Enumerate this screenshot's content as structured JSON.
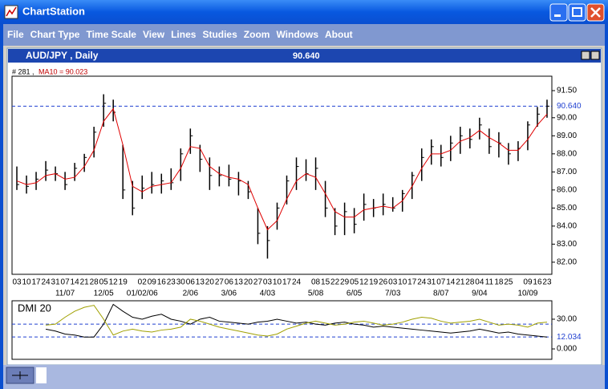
{
  "window": {
    "title": "ChartStation"
  },
  "menu": [
    "File",
    "Chart Type",
    "Time Scale",
    "View",
    "Lines",
    "Studies",
    "Zoom",
    "Windows",
    "About"
  ],
  "panel": {
    "symbol": "AUD/JPY , Daily",
    "price": "90.640"
  },
  "chart_data": [
    {
      "type": "ohlc",
      "info": "# 281 ,",
      "ma_label": "MA10 = 90.023",
      "categories": [
        "03",
        "10",
        "17",
        "24",
        "31",
        "07",
        "14",
        "21",
        "28",
        "05",
        "12",
        "19",
        null,
        "02",
        "09",
        "16",
        "23",
        "30",
        "06",
        "13",
        "20",
        "27",
        "06",
        "13",
        "20",
        "27",
        "03",
        "10",
        "17",
        "24",
        null,
        "08",
        "15",
        "22",
        "29",
        "05",
        "12",
        "19",
        "26",
        "03",
        "10",
        "17",
        "24",
        "31",
        "07",
        "14",
        "21",
        "28",
        "04",
        "11",
        "18",
        "25",
        null,
        "09",
        "16",
        "23"
      ],
      "month_labels": [
        null,
        null,
        null,
        null,
        null,
        "11/07",
        null,
        null,
        null,
        "12/05",
        null,
        null,
        null,
        "01/02/06",
        null,
        null,
        null,
        null,
        "2/06",
        null,
        null,
        null,
        "3/06",
        null,
        null,
        null,
        "4/03",
        null,
        null,
        null,
        null,
        "5/08",
        null,
        null,
        null,
        "6/05",
        null,
        null,
        null,
        "7/03",
        null,
        null,
        null,
        null,
        "8/07",
        null,
        null,
        null,
        "9/04",
        null,
        null,
        null,
        null,
        "10/09",
        null,
        null
      ],
      "high": [
        87.3,
        86.8,
        87.0,
        87.6,
        87.3,
        87.0,
        87.5,
        88.0,
        89.5,
        91.3,
        91.0,
        88.5,
        86.5,
        86.8,
        87.0,
        86.9,
        87.2,
        88.3,
        89.4,
        88.5,
        87.8,
        87.3,
        87.4,
        87.0,
        86.5,
        85.0,
        84.0,
        85.3,
        86.8,
        87.8,
        87.7,
        87.8,
        86.5,
        85.0,
        85.3,
        85.0,
        85.8,
        85.5,
        85.8,
        85.6,
        86.0,
        87.0,
        88.3,
        88.8,
        88.5,
        89.0,
        89.5,
        89.4,
        90.0,
        89.4,
        89.2,
        88.6,
        88.7,
        89.8,
        90.6,
        91.0
      ],
      "low": [
        86.0,
        85.8,
        86.0,
        86.5,
        86.5,
        86.0,
        86.5,
        87.0,
        87.8,
        89.5,
        89.8,
        85.5,
        84.6,
        85.5,
        85.8,
        85.8,
        86.0,
        86.5,
        88.0,
        87.0,
        86.0,
        86.2,
        86.2,
        85.7,
        85.5,
        83.0,
        82.2,
        83.8,
        85.2,
        86.0,
        86.5,
        86.0,
        84.5,
        83.5,
        83.5,
        83.6,
        84.3,
        84.5,
        84.6,
        84.8,
        84.8,
        85.5,
        86.5,
        87.4,
        87.3,
        87.6,
        88.0,
        88.3,
        88.8,
        88.0,
        87.8,
        87.4,
        87.6,
        88.2,
        89.5,
        90.0
      ],
      "close": [
        86.3,
        86.2,
        86.6,
        87.1,
        86.9,
        86.3,
        87.2,
        87.8,
        89.2,
        90.8,
        90.3,
        86.0,
        85.0,
        86.1,
        86.3,
        86.5,
        86.4,
        88.0,
        89.0,
        87.7,
        86.8,
        86.8,
        86.6,
        86.5,
        85.9,
        83.6,
        83.2,
        85.0,
        86.5,
        87.3,
        86.9,
        87.2,
        85.0,
        84.0,
        84.8,
        84.1,
        85.2,
        85.0,
        85.2,
        85.0,
        85.8,
        86.8,
        87.8,
        88.4,
        87.8,
        88.6,
        89.0,
        88.8,
        89.6,
        88.4,
        88.6,
        88.0,
        88.3,
        89.6,
        90.2,
        90.64
      ],
      "bar_color": "#000000",
      "ma": {
        "color": "#e00000",
        "values": [
          86.5,
          86.3,
          86.4,
          86.8,
          86.9,
          86.6,
          86.7,
          87.3,
          88.2,
          89.8,
          90.5,
          88.5,
          86.2,
          85.9,
          86.2,
          86.3,
          86.4,
          87.2,
          88.4,
          88.3,
          87.3,
          86.9,
          86.7,
          86.6,
          86.3,
          85.0,
          83.8,
          84.3,
          85.5,
          86.5,
          86.9,
          86.7,
          85.8,
          84.8,
          84.5,
          84.5,
          84.9,
          85.0,
          85.1,
          85.0,
          85.4,
          86.2,
          87.2,
          88.0,
          88.0,
          88.2,
          88.7,
          88.9,
          89.3,
          88.9,
          88.6,
          88.2,
          88.2,
          88.8,
          89.6,
          90.2
        ]
      },
      "ylim": [
        81.33,
        92.3
      ],
      "yticks": [
        {
          "value": 82,
          "label": "82.00"
        },
        {
          "value": 83,
          "label": "83.00"
        },
        {
          "value": 84,
          "label": "84.00"
        },
        {
          "value": 85,
          "label": "85.00"
        },
        {
          "value": 86,
          "label": "86.00"
        },
        {
          "value": 87,
          "label": "87.00"
        },
        {
          "value": 88,
          "label": "88.00"
        },
        {
          "value": 89,
          "label": "89.00"
        },
        {
          "value": 90,
          "label": "90.00"
        },
        {
          "value": 91.5,
          "label": "91.50"
        }
      ],
      "last": {
        "value": 90.64,
        "label": "90.640",
        "color": "#2040d0"
      }
    },
    {
      "type": "line",
      "title": "DMI 20",
      "series": [
        {
          "color": "#000000",
          "values": [
            null,
            null,
            null,
            20,
            18,
            15,
            14,
            12,
            12,
            25,
            45,
            38,
            32,
            30,
            33,
            35,
            30,
            28,
            25,
            30,
            32,
            28,
            27,
            26,
            25,
            27,
            28,
            30,
            28,
            26,
            27,
            25,
            24,
            26,
            27,
            25,
            24,
            22,
            23,
            22,
            21,
            20,
            19,
            18,
            17,
            16,
            17,
            18,
            20,
            18,
            16,
            17,
            15,
            14,
            13,
            12
          ]
        },
        {
          "color": "#a0a000",
          "values": [
            null,
            null,
            null,
            24,
            25,
            32,
            38,
            42,
            44,
            30,
            14,
            18,
            20,
            18,
            17,
            19,
            20,
            22,
            30,
            28,
            25,
            22,
            20,
            18,
            16,
            14,
            13,
            15,
            20,
            23,
            26,
            28,
            26,
            24,
            25,
            27,
            28,
            26,
            24,
            25,
            27,
            30,
            32,
            31,
            28,
            26,
            27,
            28,
            30,
            27,
            24,
            25,
            24,
            22,
            26,
            27
          ]
        }
      ],
      "ylim": [
        -10.5,
        48.6
      ],
      "yticks": [
        {
          "value": 0,
          "label": "0.000"
        },
        {
          "value": 30,
          "label": "30.00"
        }
      ],
      "threshold": 25,
      "last": {
        "value": 12.034,
        "label": "12.034",
        "color": "#2040d0"
      }
    }
  ]
}
